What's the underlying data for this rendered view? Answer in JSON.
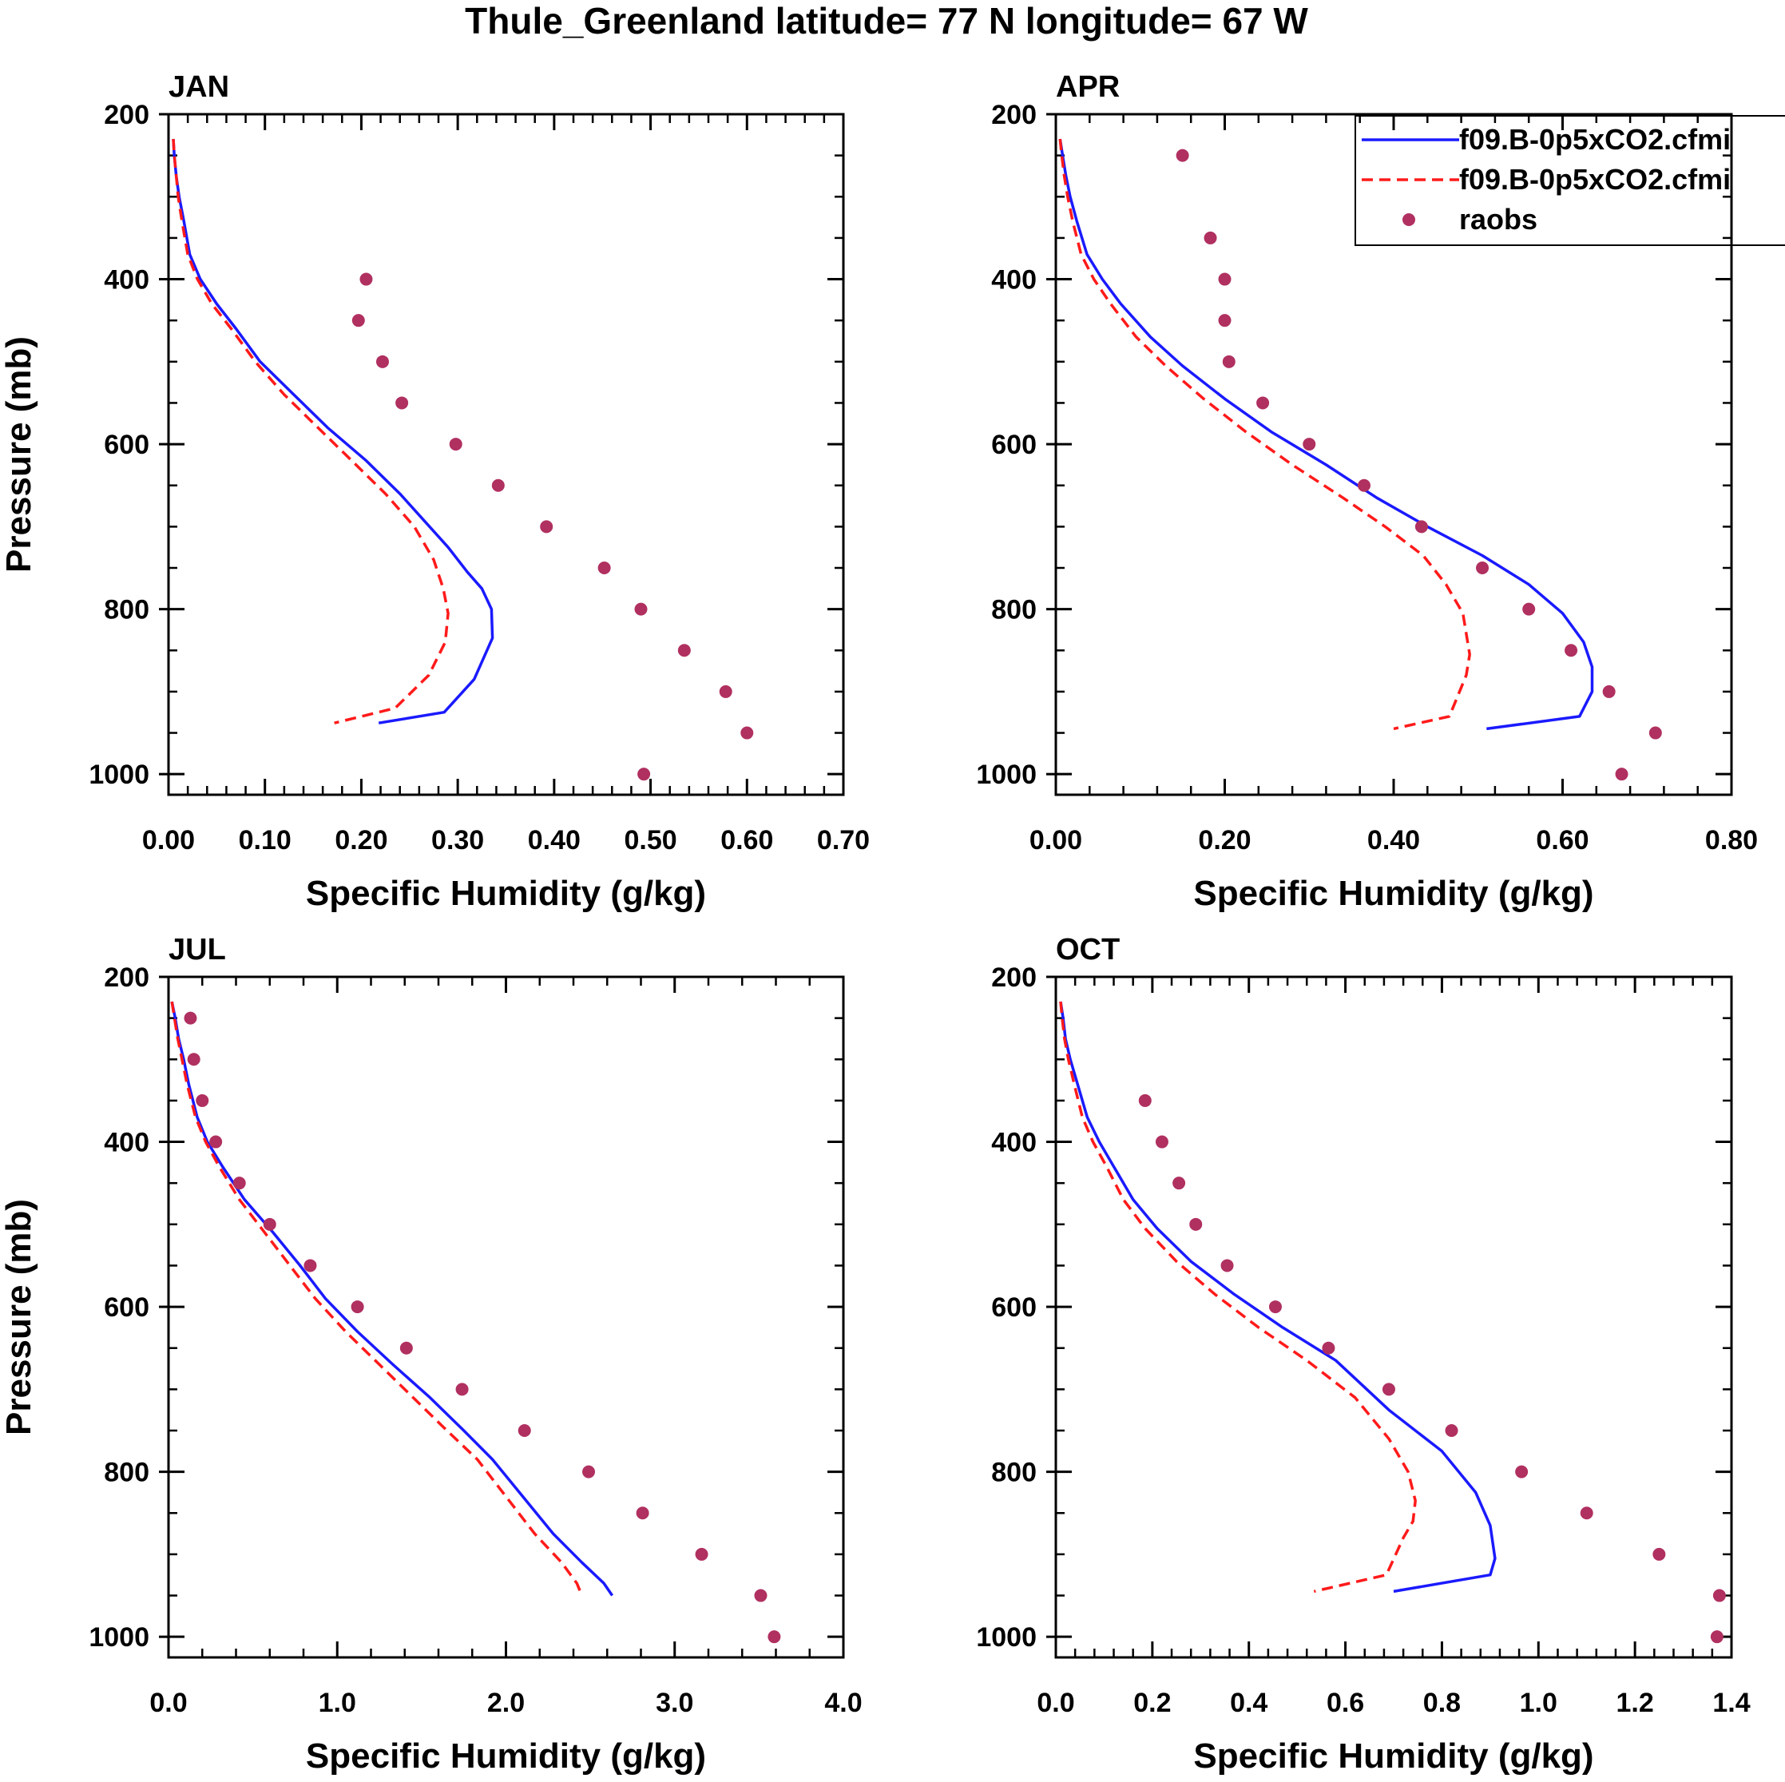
{
  "figure_title": "Thule_Greenland  latitude= 77 N longitude= 67 W",
  "colors": {
    "model1": "#1a1aff",
    "model2": "#ff1a1a",
    "raobs": "#b03060",
    "axis": "#000000"
  },
  "legend": {
    "entries": [
      {
        "label": "f09.B-0p5xCO2.cfmi",
        "style": "solid-line"
      },
      {
        "label": "f09.B-0p5xCO2.cfmi",
        "style": "dashed-line"
      },
      {
        "label": "raobs",
        "style": "marker"
      }
    ]
  },
  "chart_data": [
    {
      "type": "line",
      "panel": "JAN",
      "title": "JAN",
      "xlabel": "Specific Humidity (g/kg)",
      "ylabel": "Pressure (mb)",
      "xlim": [
        0,
        0.7
      ],
      "ylim": [
        1025,
        200
      ],
      "xticks": [
        "0.00",
        "0.10",
        "0.20",
        "0.30",
        "0.40",
        "0.50",
        "0.60",
        "0.70"
      ],
      "xtick_values": [
        0,
        0.1,
        0.2,
        0.3,
        0.4,
        0.5,
        0.6,
        0.7
      ],
      "yticks": [
        "200",
        "400",
        "600",
        "800",
        "1000"
      ],
      "ytick_values": [
        200,
        400,
        600,
        800,
        1000
      ],
      "series": [
        {
          "name": "f09.B-0p5xCO2.cfmi",
          "style": "solid",
          "x": [
            0.005,
            0.006,
            0.008,
            0.011,
            0.016,
            0.022,
            0.033,
            0.05,
            0.07,
            0.095,
            0.13,
            0.165,
            0.205,
            0.24,
            0.29,
            0.31,
            0.325,
            0.335,
            0.336,
            0.317,
            0.286,
            0.218
          ],
          "y": [
            230,
            250,
            275,
            300,
            330,
            370,
            400,
            430,
            460,
            500,
            540,
            580,
            620,
            660,
            725,
            755,
            775,
            800,
            835,
            885,
            925,
            938
          ]
        },
        {
          "name": "f09.B-0p5xCO2.cfmi",
          "style": "dashed",
          "x": [
            0.005,
            0.006,
            0.008,
            0.01,
            0.014,
            0.02,
            0.03,
            0.045,
            0.065,
            0.09,
            0.12,
            0.155,
            0.19,
            0.225,
            0.255,
            0.275,
            0.285,
            0.29,
            0.287,
            0.27,
            0.235,
            0.172
          ],
          "y": [
            230,
            250,
            275,
            300,
            330,
            370,
            400,
            430,
            460,
            500,
            540,
            580,
            620,
            660,
            700,
            740,
            775,
            805,
            840,
            880,
            920,
            938
          ]
        },
        {
          "name": "raobs",
          "style": "markers",
          "x": [
            0.205,
            0.197,
            0.222,
            0.242,
            0.298,
            0.342,
            0.392,
            0.452,
            0.49,
            0.535,
            0.578,
            0.6,
            0.493
          ],
          "y": [
            400,
            450,
            500,
            550,
            600,
            650,
            700,
            750,
            800,
            850,
            900,
            950,
            1000
          ]
        }
      ]
    },
    {
      "type": "line",
      "panel": "APR",
      "title": "APR",
      "xlabel": "Specific Humidity (g/kg)",
      "ylabel": "",
      "xlim": [
        0,
        0.8
      ],
      "ylim": [
        1025,
        200
      ],
      "xticks": [
        "0.00",
        "0.20",
        "0.40",
        "0.60",
        "0.80"
      ],
      "xtick_values": [
        0,
        0.2,
        0.4,
        0.6,
        0.8
      ],
      "yticks": [
        "200",
        "400",
        "600",
        "800",
        "1000"
      ],
      "ytick_values": [
        200,
        400,
        600,
        800,
        1000
      ],
      "series": [
        {
          "name": "f09.B-0p5xCO2.cfmi",
          "style": "solid",
          "x": [
            0.005,
            0.008,
            0.012,
            0.017,
            0.025,
            0.037,
            0.055,
            0.077,
            0.112,
            0.15,
            0.2,
            0.255,
            0.32,
            0.38,
            0.44,
            0.505,
            0.56,
            0.6,
            0.625,
            0.635,
            0.635,
            0.62,
            0.51
          ],
          "y": [
            230,
            250,
            275,
            300,
            330,
            370,
            400,
            430,
            470,
            505,
            545,
            585,
            625,
            665,
            700,
            735,
            770,
            805,
            840,
            870,
            900,
            930,
            945
          ]
        },
        {
          "name": "f09.B-0p5xCO2.cfmi",
          "style": "dashed",
          "x": [
            0.005,
            0.007,
            0.01,
            0.014,
            0.02,
            0.03,
            0.045,
            0.065,
            0.095,
            0.13,
            0.175,
            0.225,
            0.28,
            0.34,
            0.39,
            0.435,
            0.462,
            0.482,
            0.49,
            0.486,
            0.466,
            0.4
          ],
          "y": [
            230,
            250,
            275,
            300,
            330,
            370,
            400,
            430,
            470,
            505,
            545,
            585,
            625,
            665,
            700,
            735,
            770,
            805,
            855,
            880,
            930,
            945
          ]
        },
        {
          "name": "raobs",
          "style": "markers",
          "x": [
            0.15,
            0.183,
            0.2,
            0.2,
            0.205,
            0.245,
            0.3,
            0.365,
            0.433,
            0.505,
            0.56,
            0.61,
            0.655,
            0.71,
            0.67
          ],
          "y": [
            250,
            350,
            400,
            450,
            500,
            550,
            600,
            650,
            700,
            750,
            800,
            850,
            900,
            950,
            1000
          ]
        }
      ]
    },
    {
      "type": "line",
      "panel": "JUL",
      "title": "JUL",
      "xlabel": "Specific Humidity (g/kg)",
      "ylabel": "Pressure (mb)",
      "xlim": [
        0,
        4.0
      ],
      "ylim": [
        1025,
        200
      ],
      "xticks": [
        "0.0",
        "1.0",
        "2.0",
        "3.0",
        "4.0"
      ],
      "xtick_values": [
        0,
        1,
        2,
        3,
        4
      ],
      "yticks": [
        "200",
        "400",
        "600",
        "800",
        "1000"
      ],
      "ytick_values": [
        200,
        400,
        600,
        800,
        1000
      ],
      "series": [
        {
          "name": "f09.B-0p5xCO2.cfmi",
          "style": "solid",
          "x": [
            0.02,
            0.04,
            0.06,
            0.09,
            0.12,
            0.17,
            0.23,
            0.32,
            0.45,
            0.62,
            0.78,
            0.93,
            1.12,
            1.33,
            1.55,
            1.75,
            1.92,
            2.1,
            2.28,
            2.45,
            2.58,
            2.63
          ],
          "y": [
            230,
            250,
            275,
            300,
            330,
            370,
            400,
            430,
            470,
            510,
            550,
            590,
            630,
            670,
            710,
            750,
            785,
            830,
            875,
            910,
            935,
            950
          ]
        },
        {
          "name": "f09.B-0p5xCO2.cfmi",
          "style": "dashed",
          "x": [
            0.02,
            0.035,
            0.055,
            0.08,
            0.11,
            0.16,
            0.22,
            0.3,
            0.42,
            0.57,
            0.72,
            0.87,
            1.05,
            1.25,
            1.45,
            1.65,
            1.83,
            2.0,
            2.17,
            2.33,
            2.42,
            2.45
          ],
          "y": [
            230,
            250,
            275,
            300,
            330,
            370,
            400,
            430,
            470,
            510,
            550,
            590,
            630,
            670,
            710,
            750,
            785,
            830,
            875,
            910,
            935,
            950
          ]
        },
        {
          "name": "raobs",
          "style": "markers",
          "x": [
            0.13,
            0.15,
            0.2,
            0.28,
            0.42,
            0.6,
            0.84,
            1.12,
            1.41,
            1.74,
            2.11,
            2.49,
            2.81,
            3.16,
            3.51,
            3.59
          ],
          "y": [
            250,
            300,
            350,
            400,
            450,
            500,
            550,
            600,
            650,
            700,
            750,
            800,
            850,
            900,
            950,
            1000
          ]
        }
      ]
    },
    {
      "type": "line",
      "panel": "OCT",
      "title": "OCT",
      "xlabel": "Specific Humidity (g/kg)",
      "ylabel": "",
      "xlim": [
        0,
        1.4
      ],
      "ylim": [
        1025,
        200
      ],
      "xticks": [
        "0.0",
        "0.2",
        "0.4",
        "0.6",
        "0.8",
        "1.0",
        "1.2",
        "1.4"
      ],
      "xtick_values": [
        0,
        0.2,
        0.4,
        0.6,
        0.8,
        1.0,
        1.2,
        1.4
      ],
      "yticks": [
        "200",
        "400",
        "600",
        "800",
        "1000"
      ],
      "ytick_values": [
        200,
        400,
        600,
        800,
        1000
      ],
      "series": [
        {
          "name": "f09.B-0p5xCO2.cfmi",
          "style": "solid",
          "x": [
            0.01,
            0.015,
            0.02,
            0.03,
            0.045,
            0.065,
            0.09,
            0.12,
            0.16,
            0.21,
            0.28,
            0.37,
            0.47,
            0.58,
            0.69,
            0.8,
            0.87,
            0.9,
            0.91,
            0.9,
            0.7
          ],
          "y": [
            230,
            250,
            275,
            300,
            330,
            370,
            400,
            430,
            470,
            505,
            545,
            585,
            625,
            665,
            725,
            775,
            825,
            865,
            905,
            925,
            945
          ]
        },
        {
          "name": "f09.B-0p5xCO2.cfmi",
          "style": "dashed",
          "x": [
            0.01,
            0.013,
            0.018,
            0.026,
            0.038,
            0.055,
            0.077,
            0.105,
            0.14,
            0.185,
            0.25,
            0.33,
            0.42,
            0.52,
            0.62,
            0.69,
            0.73,
            0.745,
            0.74,
            0.72,
            0.685,
            0.535
          ],
          "y": [
            230,
            250,
            275,
            300,
            330,
            370,
            400,
            430,
            470,
            505,
            545,
            585,
            625,
            665,
            710,
            760,
            800,
            835,
            860,
            880,
            925,
            945
          ]
        },
        {
          "name": "raobs",
          "style": "markers",
          "x": [
            0.185,
            0.22,
            0.255,
            0.29,
            0.355,
            0.455,
            0.565,
            0.69,
            0.82,
            0.965,
            1.1,
            1.25,
            1.375,
            1.37
          ],
          "y": [
            350,
            400,
            450,
            500,
            550,
            600,
            650,
            700,
            750,
            800,
            850,
            900,
            950,
            1000
          ]
        }
      ]
    }
  ]
}
